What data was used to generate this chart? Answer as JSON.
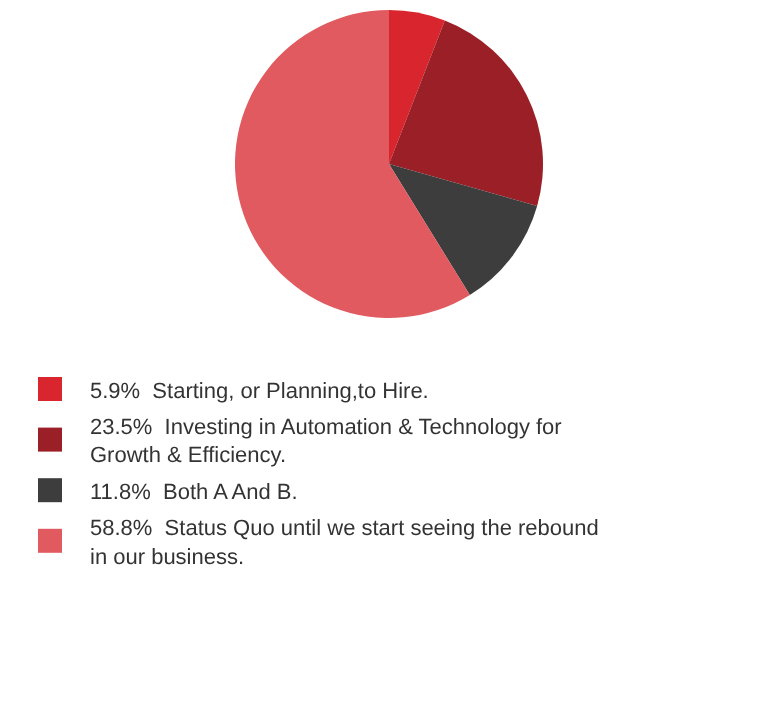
{
  "chart_data": {
    "type": "pie",
    "categories": [
      "Starting, or Planning,to Hire.",
      "Investing in Automation & Technology for Growth & Efficiency.",
      "Both A And B.",
      "Status Quo until we start seeing the rebound in our business."
    ],
    "values": [
      5.9,
      23.5,
      11.8,
      58.8
    ],
    "value_labels": [
      "5.9%",
      "23.5%",
      "11.8%",
      "58.8%"
    ],
    "colors": [
      "#d9262e",
      "#9b1f26",
      "#3d3d3d",
      "#e05a60"
    ],
    "legend": "bottom"
  }
}
